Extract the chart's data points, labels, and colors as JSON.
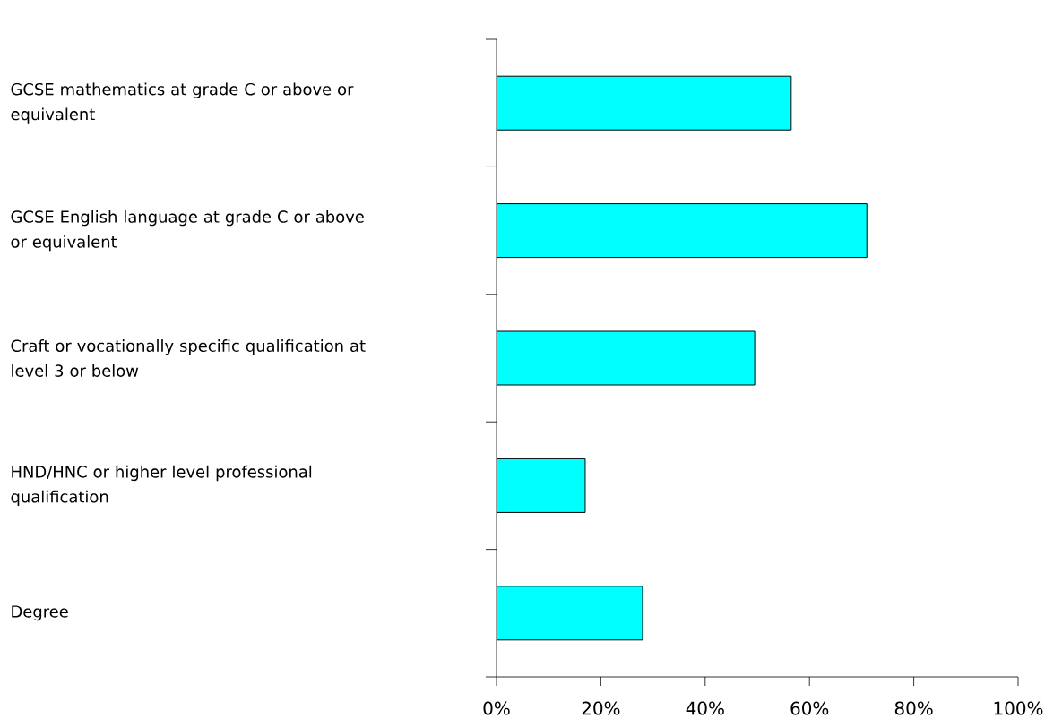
{
  "chart_data": {
    "type": "bar",
    "orientation": "horizontal",
    "categories": [
      "GCSE mathematics at grade C or above or equivalent",
      "GCSE English language at grade C or above or equivalent",
      "Craft or vocationally specific qualification at level 3 or below",
      "HND/HNC or higher level professional qualification",
      "Degree"
    ],
    "values": [
      56.5,
      71,
      49.5,
      17,
      28
    ],
    "color": "#00ffff",
    "xlim": [
      0,
      100
    ],
    "xticks": [
      {
        "value": 0,
        "label": "0%"
      },
      {
        "value": 20,
        "label": "20%"
      },
      {
        "value": 40,
        "label": "40%"
      },
      {
        "value": 60,
        "label": "60%"
      },
      {
        "value": 80,
        "label": "80%"
      },
      {
        "value": 100,
        "label": "100%"
      }
    ],
    "grid": false
  }
}
